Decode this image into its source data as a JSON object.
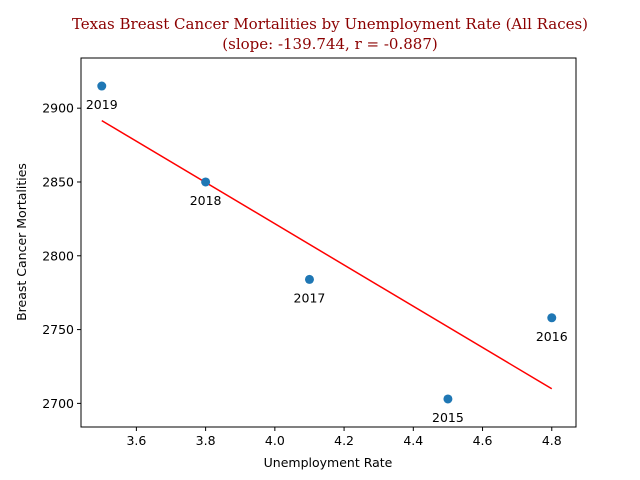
{
  "chart_data": {
    "type": "scatter",
    "title": "Texas Breast Cancer Mortalities by Unemployment Rate (All Races)",
    "subtitle": "(slope: -139.744, r = -0.887)",
    "xlabel": "Unemployment Rate",
    "ylabel": "Breast Cancer Mortalities",
    "xlim": [
      3.44,
      4.87
    ],
    "ylim": [
      2684,
      2934
    ],
    "xticks": [
      3.6,
      3.8,
      4.0,
      4.2,
      4.4,
      4.6,
      4.8
    ],
    "xtick_labels": [
      "3.6",
      "3.8",
      "4.0",
      "4.2",
      "4.4",
      "4.6",
      "4.8"
    ],
    "yticks": [
      2700,
      2750,
      2800,
      2850,
      2900
    ],
    "ytick_labels": [
      "2700",
      "2750",
      "2800",
      "2850",
      "2900"
    ],
    "grid": false,
    "point_color": "#1f77b4",
    "trend_color": "#ff0000",
    "points": [
      {
        "x": 3.5,
        "y": 2915,
        "label": "2019"
      },
      {
        "x": 3.8,
        "y": 2850,
        "label": "2018"
      },
      {
        "x": 4.1,
        "y": 2784,
        "label": "2017"
      },
      {
        "x": 4.5,
        "y": 2703,
        "label": "2015"
      },
      {
        "x": 4.8,
        "y": 2758,
        "label": "2016"
      }
    ],
    "trendline": {
      "slope": -139.744,
      "x": [
        3.5,
        4.8
      ],
      "y": [
        2891.6,
        2709.9
      ]
    }
  }
}
